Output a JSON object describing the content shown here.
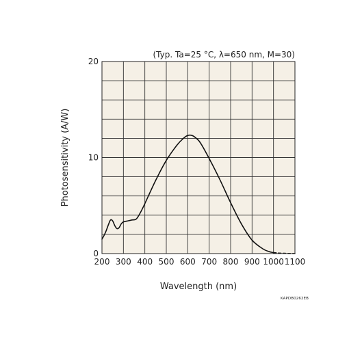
{
  "chart_data": {
    "type": "line",
    "note": "(Typ. Ta=25 °C, λ=650 nm, M=30)",
    "xlabel": "Wavelength (nm)",
    "ylabel": "Photosensitivity (A/W)",
    "figure_code": "KAPDB0262EB",
    "xlim": [
      200,
      1100
    ],
    "ylim": [
      0,
      20
    ],
    "x_ticks": [
      200,
      300,
      400,
      500,
      600,
      700,
      800,
      900,
      1000,
      1100
    ],
    "x_tick_labels": [
      "200",
      "300",
      "400",
      "500",
      "600",
      "700",
      "800",
      "900",
      "1000",
      "1100"
    ],
    "y_ticks": [
      0,
      10,
      20
    ],
    "y_tick_labels": [
      "0",
      "10",
      "20"
    ],
    "grid": true,
    "background_color": "#f5f0e6",
    "line_color": "#111111",
    "series": [
      {
        "style": "solid",
        "x": [
          200,
          210,
          220,
          230,
          240,
          250,
          260,
          270,
          280,
          290,
          300,
          320,
          340,
          360,
          380,
          400,
          450,
          500,
          550,
          580,
          600,
          620,
          640,
          660,
          700,
          750,
          800,
          850,
          900,
          950,
          980,
          1000
        ],
        "y": [
          1.5,
          1.9,
          2.4,
          3.0,
          3.5,
          3.4,
          2.9,
          2.6,
          2.7,
          3.1,
          3.3,
          3.4,
          3.5,
          3.6,
          4.3,
          5.2,
          7.6,
          9.7,
          11.3,
          12.0,
          12.3,
          12.3,
          12.0,
          11.5,
          9.9,
          7.7,
          5.3,
          3.1,
          1.4,
          0.5,
          0.2,
          0.1
        ]
      },
      {
        "style": "dashed",
        "x": [
          1000,
          1025,
          1050,
          1075,
          1100
        ],
        "y": [
          0.1,
          0.05,
          0.03,
          0.01,
          0.0
        ]
      }
    ]
  }
}
